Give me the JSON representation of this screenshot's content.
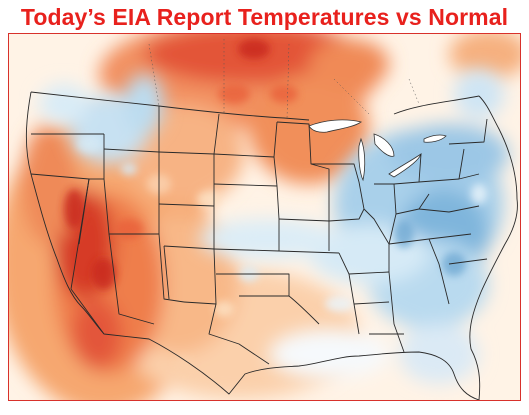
{
  "header": {
    "title": "Today’s EIA Report Temperatures vs Normal"
  },
  "map": {
    "region": "United States",
    "anomaly_palette": {
      "strong_warm": "#c8281e",
      "warm": "#e9603a",
      "mild_warm": "#f7a56b",
      "slight_warm": "#fde2c4",
      "neutral": "#ffffff",
      "slight_cool": "#d6eaf6",
      "cool": "#a7cfe9",
      "strong_cool": "#6fa9d3"
    },
    "border_color": "#333333",
    "lake_color": "#ffffff"
  }
}
